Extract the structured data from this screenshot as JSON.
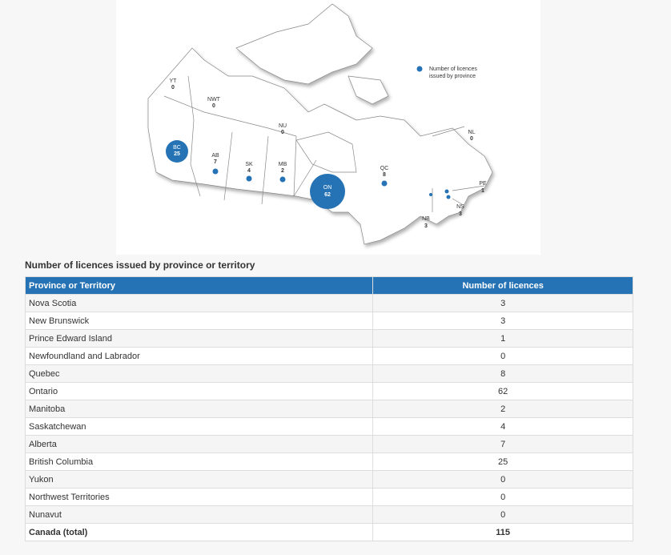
{
  "map": {
    "legend": {
      "line1": "Number of licences",
      "line2": "issued by province",
      "color": "#2572b4"
    },
    "labels": [
      {
        "abbr": "YT",
        "value": "0"
      },
      {
        "abbr": "NWT",
        "value": "0"
      },
      {
        "abbr": "NU",
        "value": "0"
      },
      {
        "abbr": "BC",
        "value": "25"
      },
      {
        "abbr": "AB",
        "value": "7"
      },
      {
        "abbr": "SK",
        "value": "4"
      },
      {
        "abbr": "MB",
        "value": "2"
      },
      {
        "abbr": "ON",
        "value": "62"
      },
      {
        "abbr": "QC",
        "value": "8"
      },
      {
        "abbr": "NL",
        "value": "0"
      },
      {
        "abbr": "PE",
        "value": "1"
      },
      {
        "abbr": "NS",
        "value": "3"
      },
      {
        "abbr": "NB",
        "value": "3"
      }
    ]
  },
  "caption": "Number of licences issued by province or territory",
  "table": {
    "headers": [
      "Province or Territory",
      "Number of licences"
    ],
    "rows": [
      [
        "Nova Scotia",
        "3"
      ],
      [
        "New Brunswick",
        "3"
      ],
      [
        "Prince Edward Island",
        "1"
      ],
      [
        "Newfoundland and Labrador",
        "0"
      ],
      [
        "Quebec",
        "8"
      ],
      [
        "Ontario",
        "62"
      ],
      [
        "Manitoba",
        "2"
      ],
      [
        "Saskatchewan",
        "4"
      ],
      [
        "Alberta",
        "7"
      ],
      [
        "British Columbia",
        "25"
      ],
      [
        "Yukon",
        "0"
      ],
      [
        "Northwest Territories",
        "0"
      ],
      [
        "Nunavut",
        "0"
      ]
    ],
    "total": [
      "Canada (total)",
      "115"
    ]
  }
}
